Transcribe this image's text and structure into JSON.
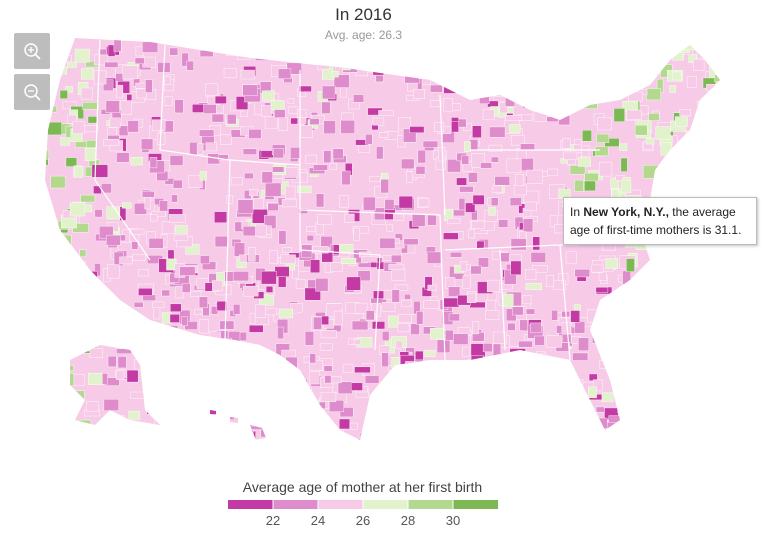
{
  "header": {
    "title": "In 2016",
    "subtitle": "Avg. age: 26.3"
  },
  "tooltip": {
    "prefix": "In",
    "place": "New York, N.Y.,",
    "text": "the average age of first-time mothers is 31.1."
  },
  "legend": {
    "title": "Average age of mother at her first birth",
    "colors": [
      "#c43aa4",
      "#de8ccb",
      "#f7cbe8",
      "#e2f2cc",
      "#b3d98f",
      "#7cb955"
    ],
    "ticks": [
      22,
      24,
      26,
      28,
      30
    ]
  }
}
